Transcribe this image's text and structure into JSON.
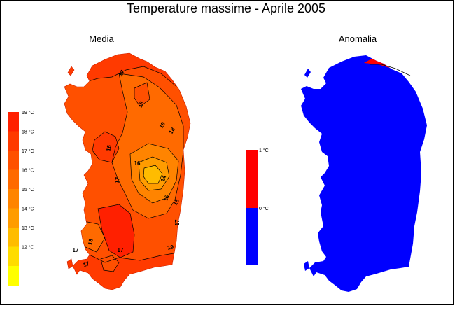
{
  "title": "Temperature massime - Aprile 2005",
  "left_map": {
    "title": "Media",
    "legend": [
      {
        "label": "19 °C",
        "color": "#ff2000"
      },
      {
        "label": "18 °C",
        "color": "#ff3a00"
      },
      {
        "label": "17 °C",
        "color": "#ff5000"
      },
      {
        "label": "16 °C",
        "color": "#ff6a00"
      },
      {
        "label": "15 °C",
        "color": "#ff8400"
      },
      {
        "label": "14 °C",
        "color": "#ff9c00"
      },
      {
        "label": "13 °C",
        "color": "#ffbc00"
      },
      {
        "label": "12 °C",
        "color": "#ffdc00"
      },
      {
        "label": "",
        "color": "#ffff00"
      }
    ],
    "contour_labels": [
      "17",
      "18",
      "16",
      "19",
      "18",
      "17",
      "16",
      "14",
      "15",
      "16",
      "17",
      "18",
      "17",
      "19",
      "17",
      "17"
    ]
  },
  "right_map": {
    "title": "Anomalia",
    "legend": [
      {
        "label": "1 °C",
        "color": "#ff0000"
      },
      {
        "label": "0 °C",
        "color": "#0000ff"
      }
    ]
  },
  "colors": {
    "positive": "#ff0000",
    "negative": "#0000ff"
  }
}
